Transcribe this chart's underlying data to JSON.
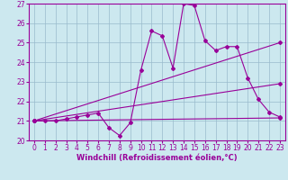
{
  "xlabel": "Windchill (Refroidissement éolien,°C)",
  "bg_color": "#cce8ef",
  "line_color": "#990099",
  "grid_color": "#99bbcc",
  "xlim": [
    -0.5,
    23.5
  ],
  "ylim": [
    20,
    27
  ],
  "yticks": [
    20,
    21,
    22,
    23,
    24,
    25,
    26,
    27
  ],
  "xticks": [
    0,
    1,
    2,
    3,
    4,
    5,
    6,
    7,
    8,
    9,
    10,
    11,
    12,
    13,
    14,
    15,
    16,
    17,
    18,
    19,
    20,
    21,
    22,
    23
  ],
  "main_x": [
    0,
    1,
    2,
    3,
    4,
    5,
    6,
    7,
    8,
    9,
    10,
    11,
    12,
    13,
    14,
    15,
    16,
    17,
    18,
    19,
    20,
    21,
    22,
    23
  ],
  "main_y": [
    21.0,
    21.0,
    21.0,
    21.1,
    21.2,
    21.3,
    21.4,
    20.65,
    20.25,
    20.9,
    23.6,
    25.6,
    25.35,
    23.7,
    27.0,
    26.9,
    25.1,
    24.6,
    24.8,
    24.8,
    23.2,
    22.1,
    21.45,
    21.2
  ],
  "trend1_x": [
    0,
    23
  ],
  "trend1_y": [
    21.0,
    21.15
  ],
  "trend2_x": [
    0,
    23
  ],
  "trend2_y": [
    21.0,
    25.0
  ],
  "trend3_x": [
    0,
    23
  ],
  "trend3_y": [
    21.0,
    22.9
  ],
  "markersize": 2.0,
  "linewidth": 0.8,
  "tick_fontsize": 5.5,
  "xlabel_fontsize": 6.0
}
